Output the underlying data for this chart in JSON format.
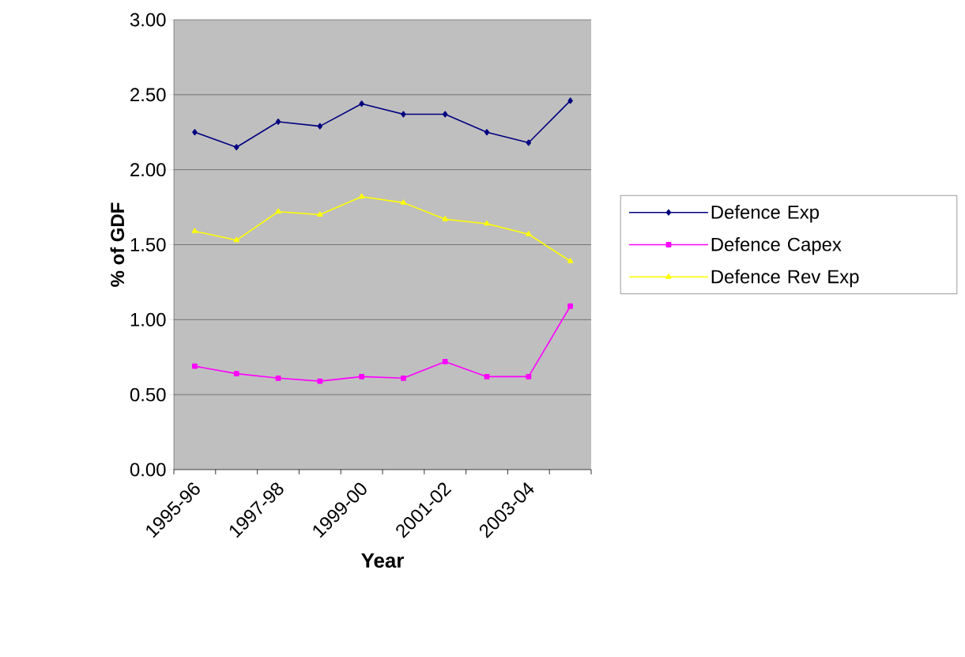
{
  "chart_data": {
    "type": "line",
    "xlabel": "Year",
    "ylabel": "% of GDF",
    "categories": [
      "1995-96",
      null,
      "1997-98",
      null,
      "1999-00",
      null,
      "2001-02",
      null,
      "2003-04",
      null
    ],
    "series": [
      {
        "name": "Defence Exp",
        "color": "#000080",
        "marker": "diamond",
        "values": [
          2.25,
          2.15,
          2.32,
          2.29,
          2.44,
          2.37,
          2.37,
          2.25,
          2.18,
          2.46
        ]
      },
      {
        "name": "Defence Capex",
        "color": "#ff00ff",
        "marker": "square",
        "values": [
          0.69,
          0.64,
          0.61,
          0.59,
          0.62,
          0.61,
          0.72,
          0.62,
          0.62,
          1.09
        ]
      },
      {
        "name": "Defence Rev Exp",
        "color": "#ffff00",
        "marker": "triangle",
        "values": [
          1.59,
          1.53,
          1.72,
          1.7,
          1.82,
          1.78,
          1.67,
          1.64,
          1.57,
          1.39
        ]
      }
    ],
    "ylim": [
      0,
      3
    ],
    "yticks": [
      {
        "value": 0,
        "label": "0.00"
      },
      {
        "value": 0.5,
        "label": "0.50"
      },
      {
        "value": 1,
        "label": "1.00"
      },
      {
        "value": 1.5,
        "label": "1.50"
      },
      {
        "value": 2,
        "label": "2.00"
      },
      {
        "value": 2.5,
        "label": "2.50"
      },
      {
        "value": 3,
        "label": "3.00"
      }
    ],
    "grid": "y",
    "legend": "right"
  }
}
